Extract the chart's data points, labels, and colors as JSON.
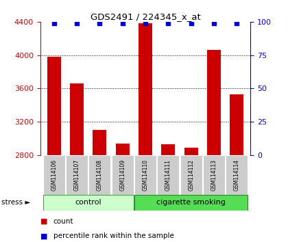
{
  "title": "GDS2491 / 224345_x_at",
  "samples": [
    "GSM114106",
    "GSM114107",
    "GSM114108",
    "GSM114109",
    "GSM114110",
    "GSM114111",
    "GSM114112",
    "GSM114113",
    "GSM114114"
  ],
  "counts": [
    3980,
    3660,
    3100,
    2940,
    4380,
    2930,
    2890,
    4060,
    3530
  ],
  "percentiles": [
    99,
    99,
    99,
    99,
    99,
    99,
    99,
    99,
    99
  ],
  "ylim_left": [
    2800,
    4400
  ],
  "ylim_right": [
    0,
    100
  ],
  "yticks_left": [
    2800,
    3200,
    3600,
    4000,
    4400
  ],
  "yticks_right": [
    0,
    25,
    50,
    75,
    100
  ],
  "bar_color": "#cc0000",
  "dot_color": "#0000cc",
  "control_indices": [
    0,
    1,
    2,
    3
  ],
  "smoking_indices": [
    4,
    5,
    6,
    7,
    8
  ],
  "control_label": "control",
  "smoking_label": "cigarette smoking",
  "stress_label": "stress",
  "control_bg": "#ccffcc",
  "smoking_bg": "#55dd55",
  "xticklabel_bg": "#cccccc",
  "legend_count_label": "count",
  "legend_pct_label": "percentile rank within the sample",
  "fig_bg": "#ffffff"
}
